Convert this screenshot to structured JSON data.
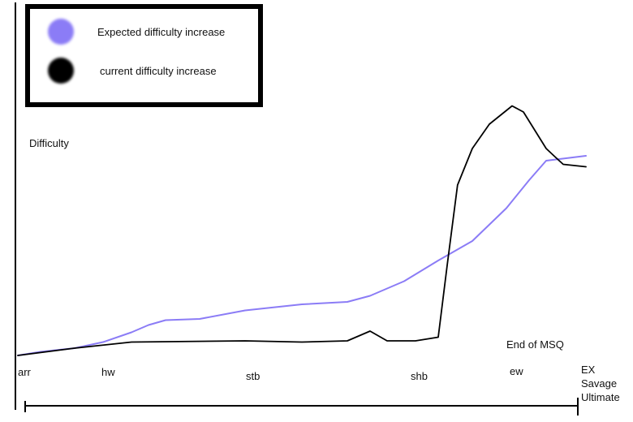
{
  "chart_data": {
    "type": "line",
    "ylabel": "Difficulty",
    "xlabel": "",
    "categories": [
      "arr",
      "hw",
      "stb",
      "shb",
      "ew",
      "EX\nSavage\nUltimate"
    ],
    "annotations": [
      {
        "text": "End of MSQ",
        "at": "ew"
      }
    ],
    "grid": false,
    "legend_placement": "top-left",
    "series": [
      {
        "name": "Expected difficulty increase",
        "color": "#8b7cf6",
        "points": [
          [
            0,
            0.0
          ],
          [
            0.2,
            0.3
          ],
          [
            0.5,
            0.6
          ],
          [
            0.75,
            1.1
          ],
          [
            1.0,
            1.9
          ],
          [
            1.15,
            2.5
          ],
          [
            1.3,
            2.9
          ],
          [
            1.6,
            3.0
          ],
          [
            2.0,
            3.7
          ],
          [
            2.5,
            4.2
          ],
          [
            2.9,
            4.4
          ],
          [
            3.1,
            4.9
          ],
          [
            3.4,
            6.1
          ],
          [
            3.7,
            7.8
          ],
          [
            4.0,
            9.4
          ],
          [
            4.3,
            12.1
          ],
          [
            4.5,
            14.4
          ],
          [
            4.65,
            16.0
          ],
          [
            5.0,
            16.4
          ]
        ]
      },
      {
        "name": "current difficulty increase",
        "color": "#000000",
        "points": [
          [
            0,
            0.0
          ],
          [
            0.5,
            0.6
          ],
          [
            1.0,
            1.1
          ],
          [
            2.0,
            1.2
          ],
          [
            2.5,
            1.1
          ],
          [
            2.9,
            1.2
          ],
          [
            3.1,
            2.0
          ],
          [
            3.25,
            1.2
          ],
          [
            3.5,
            1.2
          ],
          [
            3.7,
            1.5
          ],
          [
            3.78,
            7.5
          ],
          [
            3.87,
            14.0
          ],
          [
            4.0,
            17.0
          ],
          [
            4.15,
            19.0
          ],
          [
            4.35,
            20.5
          ],
          [
            4.45,
            20.0
          ],
          [
            4.55,
            18.5
          ],
          [
            4.65,
            17.0
          ],
          [
            4.73,
            16.3
          ],
          [
            4.8,
            15.7
          ],
          [
            5.0,
            15.5
          ]
        ]
      }
    ]
  }
}
